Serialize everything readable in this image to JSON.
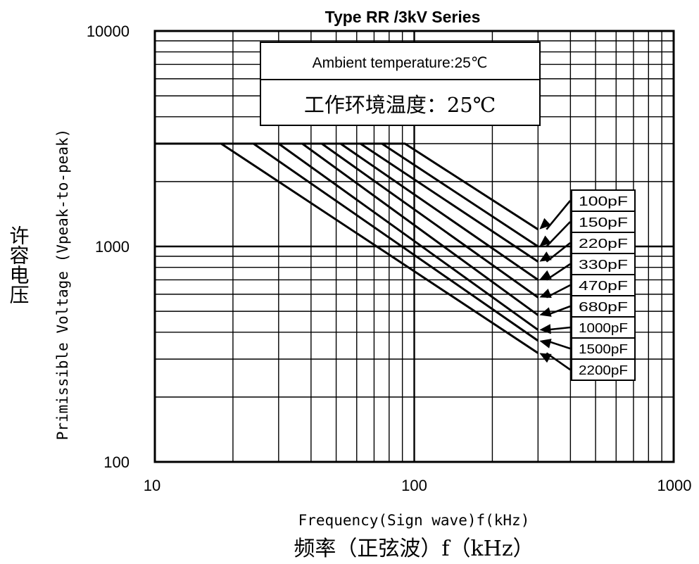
{
  "chart_data": {
    "type": "line",
    "title": "Type RR /3kV Series",
    "xlabel": "Frequency(Sign wave)f(kHz)",
    "xlabel_cn": "频率（正弦波）f（kHz）",
    "ylabel": "Primissible Voltage (Vpeak-to-peak)",
    "ylabel_cn": "许容电压",
    "x_scale": "log",
    "y_scale": "log",
    "xlim": [
      10,
      1000
    ],
    "ylim": [
      100,
      10000
    ],
    "x_ticks": [
      "10",
      "100",
      "1000"
    ],
    "y_ticks": [
      "100",
      "1000",
      "10000"
    ],
    "grid": true,
    "annotation_en": "Ambient temperature:25℃",
    "annotation_cn": "工作环境温度：25℃",
    "series": [
      {
        "name": "100pF",
        "x": [
          10,
          92,
          300
        ],
        "y": [
          3000,
          3000,
          1200
        ]
      },
      {
        "name": "150pF",
        "x": [
          10,
          75,
          300
        ],
        "y": [
          3000,
          3000,
          1000
        ]
      },
      {
        "name": "220pF",
        "x": [
          10,
          62,
          300
        ],
        "y": [
          3000,
          3000,
          850
        ]
      },
      {
        "name": "330pF",
        "x": [
          10,
          52,
          300
        ],
        "y": [
          3000,
          3000,
          700
        ]
      },
      {
        "name": "470pF",
        "x": [
          10,
          44,
          300
        ],
        "y": [
          3000,
          3000,
          580
        ]
      },
      {
        "name": "680pF",
        "x": [
          10,
          37,
          300
        ],
        "y": [
          3000,
          3000,
          480
        ]
      },
      {
        "name": "1000pF",
        "x": [
          10,
          30,
          300
        ],
        "y": [
          3000,
          3000,
          410
        ]
      },
      {
        "name": "1500pF",
        "x": [
          10,
          24,
          300
        ],
        "y": [
          3000,
          3000,
          365
        ]
      },
      {
        "name": "2200pF",
        "x": [
          10,
          18,
          300
        ],
        "y": [
          3000,
          3000,
          320
        ]
      }
    ]
  }
}
